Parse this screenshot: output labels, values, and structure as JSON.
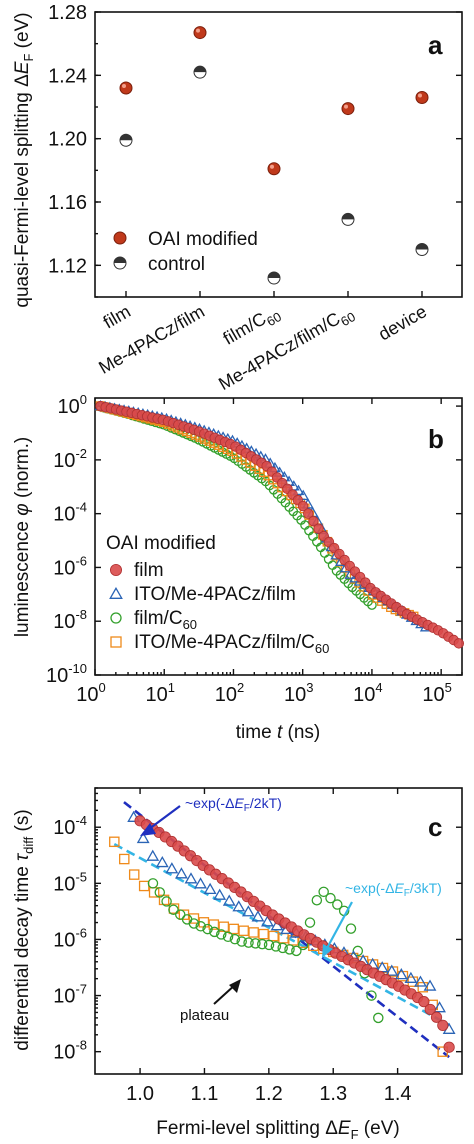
{
  "chart_data": [
    {
      "type": "scatter",
      "panel_label": "a",
      "ylabel": "quasi-Fermi-level splitting ΔE_F (eV)",
      "ylabel_main": "quasi-Fermi-level splitting Δ",
      "ylabel_var": "E",
      "ylabel_sub": "F",
      "ylabel_unit": " (eV)",
      "ylim": [
        1.1,
        1.28
      ],
      "yticks": [
        "1.12",
        "1.16",
        "1.20",
        "1.24",
        "1.28"
      ],
      "categories": [
        "film",
        "Me-4PACz/film",
        "film/C60",
        "Me-4PACz/film/C60",
        "device"
      ],
      "category_labels": [
        {
          "main": "film",
          "sub": ""
        },
        {
          "main": "Me-4PACz/film",
          "sub": ""
        },
        {
          "main": "film/C",
          "sub": "60"
        },
        {
          "main": "Me-4PACz/film/C",
          "sub": "60"
        },
        {
          "main": "device",
          "sub": ""
        }
      ],
      "series": [
        {
          "name": "OAI modified",
          "color": "#c0391b",
          "marker": "filled-circle",
          "values": [
            1.232,
            1.267,
            1.181,
            1.219,
            1.226
          ]
        },
        {
          "name": "control",
          "color": "#222222",
          "marker": "half-filled-circle",
          "values": [
            1.199,
            1.242,
            1.112,
            1.149,
            1.13
          ]
        }
      ],
      "legend_position": "bottom-left",
      "grid": false
    },
    {
      "type": "scatter",
      "panel_label": "b",
      "xlabel_main": "time ",
      "xlabel_var": "t",
      "xlabel_unit": " (ns)",
      "ylabel_main": "luminescence ",
      "ylabel_var": "φ",
      "ylabel_unit": " (norm.)",
      "xscale": "log",
      "yscale": "log",
      "xlim": [
        1,
        200000
      ],
      "ylim": [
        1e-10,
        2
      ],
      "xtick_exps": [
        0,
        1,
        2,
        3,
        4,
        5
      ],
      "ytick_exps": [
        0,
        -2,
        -4,
        -6,
        -8,
        -10
      ],
      "legend_title": "OAI modified",
      "legend_position": "left",
      "series": [
        {
          "name": "film",
          "name_main": "film",
          "name_sub": "",
          "color": "#d94a4a",
          "marker": "filled-circle",
          "x": [
            1.2,
            3,
            10,
            30,
            100,
            300,
            1000,
            2000,
            5000,
            10000,
            30000,
            100000,
            180000
          ],
          "y": [
            1.0,
            0.6,
            0.3,
            0.12,
            0.035,
            0.006,
            0.0002,
            1.5e-05,
            1e-06,
            1.5e-07,
            2e-08,
            4e-09,
            1.5e-09
          ]
        },
        {
          "name": "ITO/Me-4PACz/film",
          "name_main": "ITO/Me-4PACz/film",
          "name_sub": "",
          "color": "#2a64b5",
          "marker": "open-triangle",
          "x": [
            1.2,
            3,
            10,
            30,
            100,
            300,
            1000,
            2000,
            3000,
            5000,
            10000,
            30000,
            60000
          ],
          "y": [
            1.0,
            0.65,
            0.35,
            0.15,
            0.05,
            0.01,
            0.0005,
            2e-05,
            3e-06,
            5e-07,
            1.5e-07,
            2e-08,
            6e-09
          ]
        },
        {
          "name": "film/C60",
          "name_main": "film/C",
          "name_sub": "60",
          "color": "#33a02c",
          "marker": "open-circle",
          "x": [
            1.2,
            3,
            10,
            30,
            100,
            300,
            1000,
            2000,
            3000,
            5000,
            10000
          ],
          "y": [
            0.95,
            0.5,
            0.2,
            0.06,
            0.012,
            0.0015,
            5e-05,
            4e-06,
            8e-07,
            2e-07,
            4e-08
          ]
        },
        {
          "name": "ITO/Me-4PACz/film/C60",
          "name_main": "ITO/Me-4PACz/film/C",
          "name_sub": "60",
          "color": "#ef8a1a",
          "marker": "open-square",
          "x": [
            1.2,
            3,
            10,
            30,
            100,
            300,
            1000,
            2000,
            3000,
            5000,
            10000,
            20000,
            40000
          ],
          "y": [
            1.0,
            0.55,
            0.25,
            0.08,
            0.02,
            0.003,
            0.0002,
            1.5e-05,
            3e-06,
            5e-07,
            1e-07,
            3e-08,
            1.5e-08
          ]
        }
      ],
      "grid": false
    },
    {
      "type": "scatter",
      "panel_label": "c",
      "xlabel_main": "Fermi-level splitting Δ",
      "xlabel_var": "E",
      "xlabel_sub": "F",
      "xlabel_unit": " (eV)",
      "ylabel_main": "differential decay time  ",
      "ylabel_var": "τ",
      "ylabel_sub": "diff",
      "ylabel_unit": " (s)",
      "xscale": "linear",
      "yscale": "log",
      "xlim": [
        0.93,
        1.5
      ],
      "ylim": [
        4e-09,
        0.0005
      ],
      "xticks": [
        "1.0",
        "1.1",
        "1.2",
        "1.3",
        "1.4"
      ],
      "xtick_values": [
        1.0,
        1.1,
        1.2,
        1.3,
        1.4
      ],
      "ytick_exps": [
        -4,
        -5,
        -6,
        -7,
        -8
      ],
      "annotations": [
        {
          "label": "~exp(-ΔE_F/2kT)",
          "pre": "~exp(-Δ",
          "var": "E",
          "sub": "F",
          "post": "/2kT)",
          "color": "#1f2fbf"
        },
        {
          "label": "~exp(-ΔE_F/3kT)",
          "pre": "~exp(-Δ",
          "var": "E",
          "sub": "F",
          "post": "/3kT)",
          "color": "#33b5e5"
        },
        {
          "label": "plateau",
          "color": "#111111"
        }
      ],
      "fit_lines": [
        {
          "name": "~exp(-ΔE_F/2kT)",
          "color": "#1f2fbf",
          "x": [
            0.975,
            1.48
          ],
          "y": [
            0.00028,
            8e-09
          ]
        },
        {
          "name": "~exp(-ΔE_F/3kT)",
          "color": "#33b5e5",
          "x": [
            0.96,
            1.48
          ],
          "y": [
            5e-05,
            3e-08
          ]
        }
      ],
      "series": [
        {
          "name": "film",
          "color": "#d94a4a",
          "marker": "filled-circle",
          "x": [
            1.0,
            1.03,
            1.06,
            1.1,
            1.15,
            1.2,
            1.25,
            1.3,
            1.35,
            1.4,
            1.44,
            1.47,
            1.48
          ],
          "y": [
            0.00013,
            8e-05,
            4.5e-05,
            2e-05,
            8e-06,
            3e-06,
            1.3e-06,
            6e-07,
            3e-07,
            1.5e-07,
            8e-08,
            3e-08,
            1.2e-08
          ]
        },
        {
          "name": "ITO/Me-4PACz/film",
          "color": "#2a64b5",
          "marker": "open-triangle",
          "x": [
            0.99,
            1.0,
            1.02,
            1.05,
            1.1,
            1.15,
            1.2,
            1.25,
            1.3,
            1.35,
            1.4,
            1.45,
            1.48
          ],
          "y": [
            0.00015,
            8e-05,
            3e-05,
            1.8e-05,
            9e-06,
            4e-06,
            2e-06,
            1.2e-06,
            7e-07,
            4e-07,
            2.5e-07,
            1.5e-07,
            2.5e-08
          ]
        },
        {
          "name": "film/C60",
          "color": "#33a02c",
          "marker": "open-circle",
          "x": [
            1.02,
            1.05,
            1.08,
            1.12,
            1.16,
            1.2,
            1.25,
            1.28,
            1.32,
            1.37
          ],
          "y": [
            1e-05,
            3.5e-06,
            2e-06,
            1.3e-06,
            9e-07,
            8e-07,
            6e-07,
            8e-06,
            3e-06,
            4e-08
          ]
        },
        {
          "name": "ITO/Me-4PACz/film/C60",
          "color": "#ef8a1a",
          "marker": "open-square",
          "x": [
            0.96,
            0.98,
            1.0,
            1.03,
            1.06,
            1.1,
            1.15,
            1.2,
            1.25,
            1.3,
            1.35,
            1.4,
            1.45,
            1.47
          ],
          "y": [
            5.5e-05,
            2.2e-05,
            1e-05,
            6e-06,
            3e-06,
            2e-06,
            1.5e-06,
            1.2e-06,
            9e-07,
            6e-07,
            4e-07,
            2.5e-07,
            1.2e-07,
            1e-08
          ]
        }
      ],
      "grid": false
    }
  ]
}
